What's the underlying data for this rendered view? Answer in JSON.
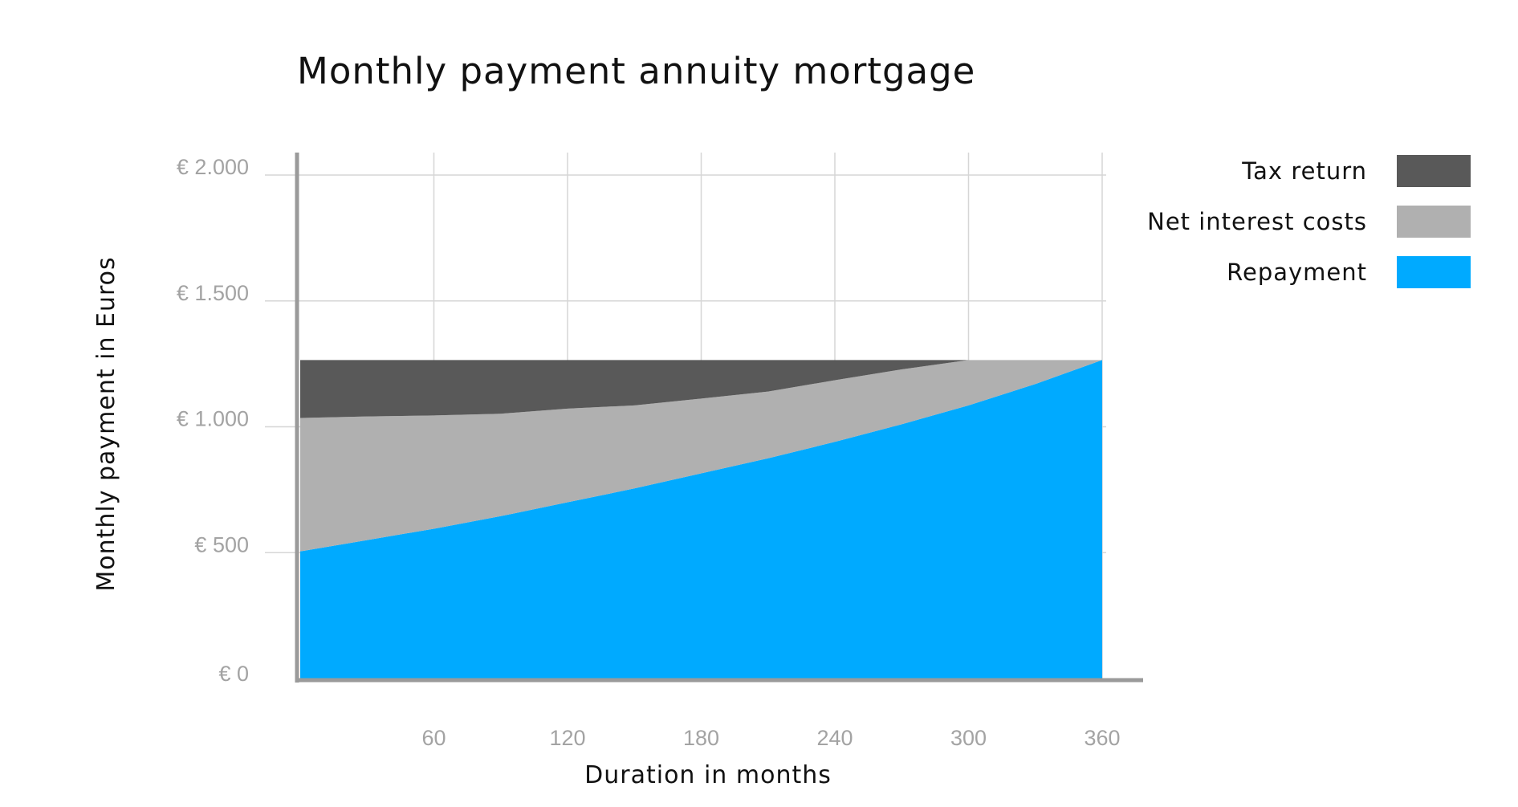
{
  "chart_data": {
    "type": "area",
    "title": "Monthly payment annuity mortgage",
    "xlabel": "Duration in months",
    "ylabel": "Monthly payment in Euros",
    "xlim": [
      0,
      375
    ],
    "ylim": [
      0,
      2100
    ],
    "x_ticks": [
      60,
      120,
      180,
      240,
      300,
      360
    ],
    "x_tick_labels": [
      "60",
      "120",
      "180",
      "240",
      "300",
      "360"
    ],
    "y_ticks": [
      0,
      500,
      1000,
      1500,
      2000
    ],
    "y_tick_labels": [
      "€ 0",
      "€ 500",
      "€ 1.000",
      "€ 1.500",
      "€ 2.000"
    ],
    "grid": true,
    "stacked": true,
    "legend_position": "top-right",
    "x": [
      0,
      30,
      60,
      90,
      120,
      150,
      180,
      210,
      240,
      270,
      300,
      330,
      360
    ],
    "series": [
      {
        "name": "Repayment",
        "color": "#00aaff",
        "values": [
          505,
          550,
          595,
          645,
          700,
          755,
          815,
          875,
          940,
          1010,
          1085,
          1170,
          1265
        ]
      },
      {
        "name": "Net interest costs",
        "color": "#b0b0b0",
        "values": [
          530,
          491,
          450,
          407,
          372,
          330,
          297,
          265,
          245,
          218,
          180,
          95,
          0
        ]
      },
      {
        "name": "Tax return",
        "color": "#595959",
        "values": [
          230,
          224,
          220,
          213,
          193,
          180,
          153,
          125,
          80,
          37,
          0,
          0,
          0
        ]
      }
    ],
    "legend": [
      {
        "name": "Tax return",
        "color": "#595959"
      },
      {
        "name": "Net interest costs",
        "color": "#b0b0b0"
      },
      {
        "name": "Repayment",
        "color": "#00aaff"
      }
    ]
  }
}
